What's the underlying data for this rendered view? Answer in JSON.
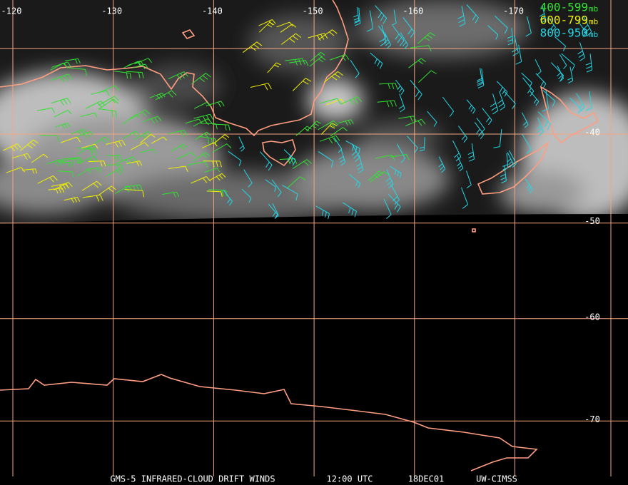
{
  "map": {
    "longitudes": [
      -120,
      -130,
      -140,
      -150,
      -160,
      -170
    ],
    "latitudes": [
      -40,
      -50,
      -60,
      -70
    ],
    "legend": [
      {
        "range": "400-599",
        "unit": "mb",
        "color": "#33e033"
      },
      {
        "range": "600-799",
        "unit": "mb",
        "color": "#f0f000"
      },
      {
        "range": "800-950",
        "unit": "mb",
        "color": "#22d8e8"
      }
    ],
    "footer": {
      "product": "GMS-5 INFRARED-CLOUD DRIFT WINDS",
      "time": "12:00 UTC",
      "date": "18DEC01",
      "source": "UW-CIMSS"
    }
  }
}
